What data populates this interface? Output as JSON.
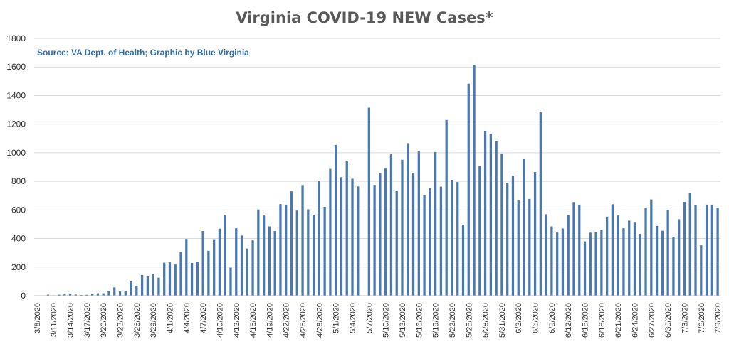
{
  "chart_data": {
    "type": "bar",
    "title": "Virginia COVID-19 NEW Cases*",
    "subtitle": "Source: VA Dept. of Health; Graphic by Blue Virginia",
    "xlabel": "",
    "ylabel": "",
    "ylim": [
      0,
      1800
    ],
    "yticks": [
      0,
      200,
      400,
      600,
      800,
      1000,
      1200,
      1400,
      1600,
      1800
    ],
    "grid": true,
    "legend": "none",
    "bar_color": "#4a78b0",
    "categories": [
      "3/8/2020",
      "3/9/2020",
      "3/10/2020",
      "3/11/2020",
      "3/12/2020",
      "3/13/2020",
      "3/14/2020",
      "3/15/2020",
      "3/16/2020",
      "3/17/2020",
      "3/18/2020",
      "3/19/2020",
      "3/20/2020",
      "3/21/2020",
      "3/22/2020",
      "3/23/2020",
      "3/24/2020",
      "3/25/2020",
      "3/26/2020",
      "3/27/2020",
      "3/28/2020",
      "3/29/2020",
      "3/30/2020",
      "3/31/2020",
      "4/1/2020",
      "4/2/2020",
      "4/3/2020",
      "4/4/2020",
      "4/5/2020",
      "4/6/2020",
      "4/7/2020",
      "4/8/2020",
      "4/9/2020",
      "4/10/2020",
      "4/11/2020",
      "4/12/2020",
      "4/13/2020",
      "4/14/2020",
      "4/15/2020",
      "4/16/2020",
      "4/17/2020",
      "4/18/2020",
      "4/19/2020",
      "4/20/2020",
      "4/21/2020",
      "4/22/2020",
      "4/23/2020",
      "4/24/2020",
      "4/25/2020",
      "4/26/2020",
      "4/27/2020",
      "4/28/2020",
      "4/29/2020",
      "4/30/2020",
      "5/1/2020",
      "5/2/2020",
      "5/3/2020",
      "5/4/2020",
      "5/5/2020",
      "5/6/2020",
      "5/7/2020",
      "5/8/2020",
      "5/9/2020",
      "5/10/2020",
      "5/11/2020",
      "5/12/2020",
      "5/13/2020",
      "5/14/2020",
      "5/15/2020",
      "5/16/2020",
      "5/17/2020",
      "5/18/2020",
      "5/19/2020",
      "5/20/2020",
      "5/21/2020",
      "5/22/2020",
      "5/23/2020",
      "5/24/2020",
      "5/25/2020",
      "5/26/2020",
      "5/27/2020",
      "5/28/2020",
      "5/29/2020",
      "5/30/2020",
      "5/31/2020",
      "6/1/2020",
      "6/2/2020",
      "6/3/2020",
      "6/4/2020",
      "6/5/2020",
      "6/6/2020",
      "6/7/2020",
      "6/8/2020",
      "6/9/2020",
      "6/10/2020",
      "6/11/2020",
      "6/12/2020",
      "6/13/2020",
      "6/14/2020",
      "6/15/2020",
      "6/16/2020",
      "6/17/2020",
      "6/18/2020",
      "6/19/2020",
      "6/20/2020",
      "6/21/2020",
      "6/22/2020",
      "6/23/2020",
      "6/24/2020",
      "6/25/2020",
      "6/26/2020",
      "6/27/2020",
      "6/28/2020",
      "6/29/2020",
      "6/30/2020",
      "7/1/2020",
      "7/2/2020",
      "7/3/2020",
      "7/4/2020",
      "7/5/2020",
      "7/6/2020",
      "7/7/2020",
      "7/8/2020",
      "7/9/2020"
    ],
    "values": [
      2,
      0,
      7,
      3,
      7,
      9,
      11,
      8,
      5,
      6,
      11,
      17,
      17,
      35,
      58,
      31,
      35,
      99,
      70,
      144,
      135,
      151,
      126,
      231,
      233,
      218,
      305,
      397,
      229,
      236,
      452,
      314,
      395,
      469,
      563,
      196,
      472,
      421,
      330,
      387,
      603,
      561,
      485,
      452,
      641,
      637,
      730,
      596,
      774,
      604,
      567,
      802,
      622,
      887,
      1055,
      829,
      940,
      818,
      764,
      0,
      1315,
      775,
      855,
      889,
      989,
      731,
      951,
      1067,
      859,
      1011,
      703,
      751,
      1005,
      763,
      1229,
      810,
      795,
      496,
      1483,
      1615,
      908,
      1152,
      1132,
      1083,
      995,
      790,
      838,
      666,
      955,
      677,
      865,
      1284,
      570,
      484,
      442,
      470,
      565,
      655,
      637,
      380,
      441,
      445,
      461,
      553,
      640,
      561,
      472,
      525,
      511,
      432,
      617,
      673,
      488,
      454,
      600,
      412,
      535,
      656,
      717,
      636,
      353,
      637,
      637,
      613
    ],
    "x_tick_labels": [
      "3/8/2020",
      "3/11/2020",
      "3/14/2020",
      "3/17/2020",
      "3/20/2020",
      "3/23/2020",
      "3/26/2020",
      "3/29/2020",
      "4/1/2020",
      "4/4/2020",
      "4/7/2020",
      "4/10/2020",
      "4/13/2020",
      "4/16/2020",
      "4/19/2020",
      "4/22/2020",
      "4/25/2020",
      "4/28/2020",
      "5/1/2020",
      "5/4/2020",
      "5/7/2020",
      "5/10/2020",
      "5/13/2020",
      "5/16/2020",
      "5/19/2020",
      "5/22/2020",
      "5/25/2020",
      "5/28/2020",
      "5/31/2020",
      "6/3/2020",
      "6/6/2020",
      "6/9/2020",
      "6/12/2020",
      "6/15/2020",
      "6/18/2020",
      "6/21/2020",
      "6/24/2020",
      "6/27/2020",
      "6/30/2020",
      "7/3/2020",
      "7/6/2020",
      "7/9/2020"
    ]
  }
}
